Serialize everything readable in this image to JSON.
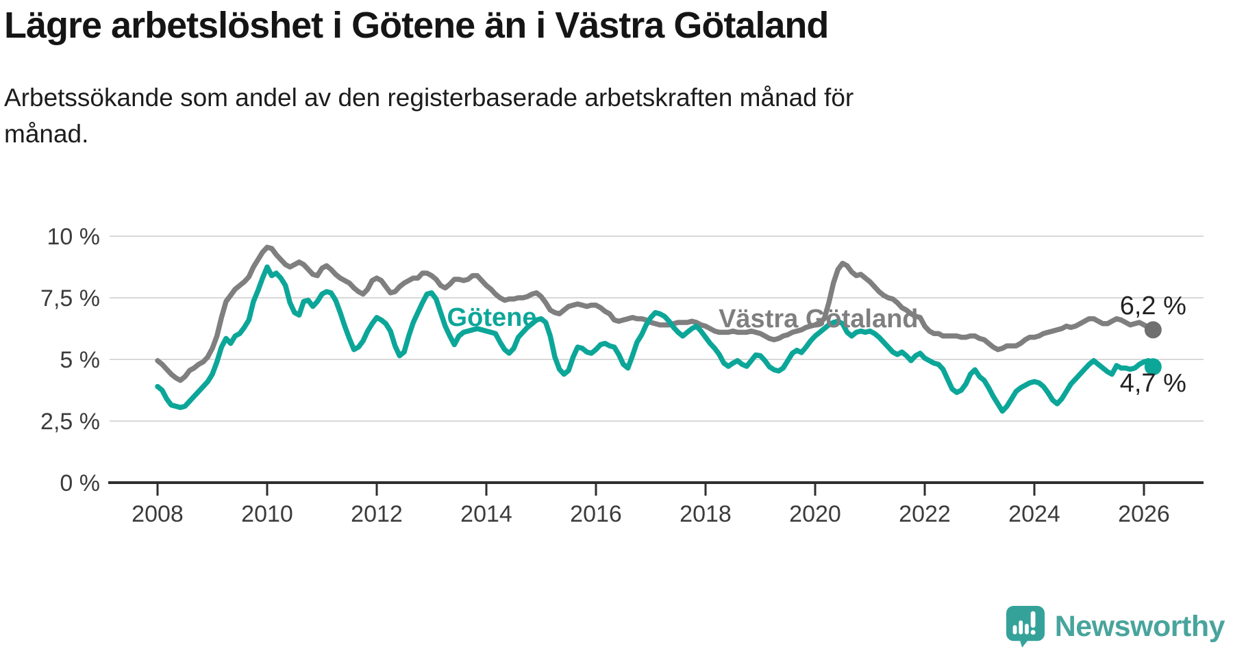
{
  "title": "Lägre arbetslöshet i Götene än i Västra Götaland",
  "subtitle_lines": [
    "Arbetssökande som andel av den registerbaserade arbetskraften månad för",
    "månad."
  ],
  "branding": {
    "logo_text": "Newsworthy",
    "logo_bubble_color": "#35a29a",
    "logo_text_color": "#48a49c",
    "logo_icon_name": "newsworthy-bar-chart-bubble-icon"
  },
  "chart_data": {
    "type": "line",
    "unit": "%",
    "grid": true,
    "colors": {
      "gridline": "#d8d8d8",
      "axis": "#2e2e2e",
      "tick_label": "#3b3b3b",
      "end_label": "#222222"
    },
    "x_axis": {
      "ticks": [
        2008,
        2010,
        2012,
        2014,
        2016,
        2018,
        2020,
        2022,
        2024,
        2026
      ],
      "range_years": [
        2007.1,
        2027.1
      ]
    },
    "y_axis": {
      "ticks": [
        {
          "value": 0,
          "label": "0 %"
        },
        {
          "value": 2.5,
          "label": "2,5 %"
        },
        {
          "value": 5,
          "label": "5 %"
        },
        {
          "value": 7.5,
          "label": "7,5 %"
        },
        {
          "value": 10,
          "label": "10 %"
        }
      ],
      "range": [
        0,
        10.5
      ]
    },
    "series": [
      {
        "name": "Västra Götaland",
        "color": "#7f7f7f",
        "dot_color": "#6f6f6f",
        "start_year": 2008,
        "step_months": 1,
        "end_label": "6,2 %",
        "end_label_position": "above",
        "annotation": {
          "text": "Västra Götaland",
          "year": 2020.06,
          "value": 6.3
        },
        "values": [
          4.95,
          4.8,
          4.6,
          4.4,
          4.25,
          4.15,
          4.3,
          4.55,
          4.65,
          4.8,
          4.9,
          5.1,
          5.45,
          5.95,
          6.7,
          7.35,
          7.6,
          7.85,
          8.0,
          8.15,
          8.35,
          8.75,
          9.05,
          9.35,
          9.55,
          9.5,
          9.25,
          9.05,
          8.85,
          8.75,
          8.85,
          8.95,
          8.85,
          8.65,
          8.45,
          8.4,
          8.7,
          8.8,
          8.65,
          8.45,
          8.3,
          8.2,
          8.1,
          7.9,
          7.75,
          7.65,
          7.85,
          8.2,
          8.3,
          8.2,
          7.95,
          7.7,
          7.75,
          7.95,
          8.1,
          8.2,
          8.3,
          8.3,
          8.5,
          8.5,
          8.4,
          8.25,
          8.0,
          7.9,
          8.05,
          8.25,
          8.25,
          8.2,
          8.25,
          8.4,
          8.4,
          8.2,
          8.0,
          7.85,
          7.65,
          7.5,
          7.4,
          7.45,
          7.45,
          7.5,
          7.5,
          7.55,
          7.65,
          7.7,
          7.55,
          7.3,
          7.0,
          6.9,
          6.85,
          7.0,
          7.15,
          7.2,
          7.25,
          7.2,
          7.15,
          7.2,
          7.2,
          7.1,
          6.95,
          6.85,
          6.6,
          6.55,
          6.6,
          6.65,
          6.7,
          6.65,
          6.65,
          6.6,
          6.5,
          6.45,
          6.4,
          6.4,
          6.4,
          6.45,
          6.5,
          6.5,
          6.5,
          6.55,
          6.5,
          6.4,
          6.35,
          6.25,
          6.15,
          6.1,
          6.1,
          6.1,
          6.15,
          6.1,
          6.1,
          6.1,
          6.15,
          6.1,
          6.05,
          5.95,
          5.85,
          5.8,
          5.85,
          5.95,
          6.0,
          6.1,
          6.15,
          6.2,
          6.3,
          6.35,
          6.4,
          6.5,
          6.65,
          7.3,
          8.1,
          8.65,
          8.9,
          8.8,
          8.55,
          8.4,
          8.45,
          8.3,
          8.15,
          7.95,
          7.75,
          7.6,
          7.5,
          7.45,
          7.3,
          7.1,
          7.0,
          6.85,
          6.75,
          6.7,
          6.35,
          6.15,
          6.05,
          6.05,
          5.95,
          5.95,
          5.95,
          5.95,
          5.9,
          5.9,
          5.95,
          5.95,
          5.85,
          5.8,
          5.65,
          5.5,
          5.4,
          5.45,
          5.55,
          5.55,
          5.55,
          5.65,
          5.8,
          5.9,
          5.9,
          5.95,
          6.05,
          6.1,
          6.15,
          6.2,
          6.25,
          6.35,
          6.3,
          6.35,
          6.45,
          6.55,
          6.65,
          6.65,
          6.55,
          6.45,
          6.45,
          6.55,
          6.65,
          6.6,
          6.5,
          6.4,
          6.45,
          6.5,
          6.4,
          6.3,
          6.2
        ]
      },
      {
        "name": "Götene",
        "color": "#0ca699",
        "dot_color": "#0ca699",
        "start_year": 2008,
        "step_months": 1,
        "end_label": "4,7 %",
        "end_label_position": "below",
        "annotation": {
          "text": "Götene",
          "year": 2014.1,
          "value": 6.36
        },
        "values": [
          3.9,
          3.75,
          3.4,
          3.15,
          3.1,
          3.05,
          3.1,
          3.3,
          3.5,
          3.7,
          3.9,
          4.1,
          4.4,
          4.9,
          5.5,
          5.85,
          5.65,
          5.95,
          6.05,
          6.3,
          6.6,
          7.35,
          7.8,
          8.3,
          8.75,
          8.4,
          8.5,
          8.3,
          8.0,
          7.3,
          6.9,
          6.8,
          7.35,
          7.4,
          7.15,
          7.35,
          7.65,
          7.75,
          7.7,
          7.4,
          6.9,
          6.35,
          5.85,
          5.4,
          5.5,
          5.75,
          6.15,
          6.45,
          6.7,
          6.6,
          6.45,
          6.15,
          5.55,
          5.15,
          5.3,
          5.95,
          6.5,
          6.9,
          7.3,
          7.65,
          7.7,
          7.45,
          6.9,
          6.35,
          5.95,
          5.6,
          5.95,
          6.1,
          6.15,
          6.2,
          6.25,
          6.2,
          6.15,
          6.1,
          6.05,
          5.7,
          5.4,
          5.25,
          5.45,
          5.9,
          6.1,
          6.3,
          6.45,
          6.6,
          6.65,
          6.5,
          5.95,
          5.1,
          4.6,
          4.4,
          4.55,
          5.1,
          5.5,
          5.45,
          5.3,
          5.25,
          5.4,
          5.6,
          5.65,
          5.55,
          5.5,
          5.2,
          4.8,
          4.65,
          5.15,
          5.7,
          6.0,
          6.4,
          6.7,
          6.9,
          6.85,
          6.75,
          6.55,
          6.3,
          6.1,
          5.95,
          6.1,
          6.25,
          6.35,
          6.15,
          5.9,
          5.65,
          5.45,
          5.2,
          4.85,
          4.72,
          4.85,
          4.95,
          4.8,
          4.72,
          4.95,
          5.18,
          5.15,
          4.95,
          4.7,
          4.58,
          4.53,
          4.65,
          4.95,
          5.25,
          5.37,
          5.28,
          5.5,
          5.75,
          5.95,
          6.1,
          6.25,
          6.4,
          6.5,
          6.55,
          6.45,
          6.1,
          5.95,
          6.1,
          6.15,
          6.1,
          6.15,
          6.05,
          5.9,
          5.7,
          5.5,
          5.3,
          5.2,
          5.3,
          5.15,
          4.95,
          5.15,
          5.25,
          5.05,
          4.95,
          4.85,
          4.8,
          4.6,
          4.2,
          3.8,
          3.66,
          3.75,
          4.0,
          4.4,
          4.58,
          4.3,
          4.15,
          3.85,
          3.5,
          3.2,
          2.9,
          3.1,
          3.4,
          3.7,
          3.85,
          3.95,
          4.05,
          4.1,
          4.05,
          3.9,
          3.65,
          3.35,
          3.2,
          3.4,
          3.7,
          4.0,
          4.2,
          4.4,
          4.6,
          4.8,
          4.95,
          4.8,
          4.65,
          4.5,
          4.4,
          4.75,
          4.65,
          4.65,
          4.6,
          4.65,
          4.8,
          4.9,
          4.95,
          4.7
        ]
      }
    ]
  }
}
